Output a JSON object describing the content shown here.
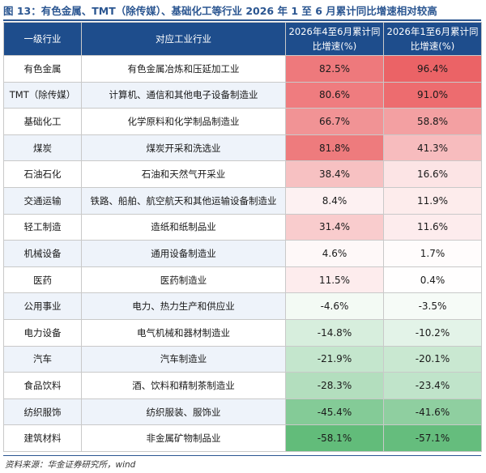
{
  "title": "图 13：有色金属、TMT（除传媒）、基础化工等行业 2026 年 1 至 6 月累计同比增速相对较高",
  "source": "资料来源：华金证券研究所，wind",
  "colors": {
    "header_bg": "#1e4d8c",
    "positive": "#e8474b",
    "negative": "#4fb46a"
  },
  "table": {
    "headers": [
      "一级行业",
      "对应工业行业",
      "2026年4至6月累计同比增速(%)",
      "2026年1至6月累计同比增速(%)"
    ],
    "rows": [
      [
        "有色金属",
        "有色金属冶炼和压延加工业",
        "82.5%",
        "96.4%"
      ],
      [
        "TMT（除传媒）",
        "计算机、通信和其他电子设备制造业",
        "80.6%",
        "91.0%"
      ],
      [
        "基础化工",
        "化学原料和化学制品制造业",
        "66.7%",
        "58.8%"
      ],
      [
        "煤炭",
        "煤炭开采和洗选业",
        "81.8%",
        "41.3%"
      ],
      [
        "石油石化",
        "石油和天然气开采业",
        "38.4%",
        "16.6%"
      ],
      [
        "交通运输",
        "铁路、船舶、航空航天和其他运输设备制造业",
        "8.4%",
        "11.9%"
      ],
      [
        "轻工制造",
        "造纸和纸制品业",
        "31.4%",
        "11.6%"
      ],
      [
        "机械设备",
        "通用设备制造业",
        "4.6%",
        "1.7%"
      ],
      [
        "医药",
        "医药制造业",
        "11.5%",
        "0.4%"
      ],
      [
        "公用事业",
        "电力、热力生产和供应业",
        "-4.6%",
        "-3.5%"
      ],
      [
        "电力设备",
        "电气机械和器材制造业",
        "-14.8%",
        "-10.2%"
      ],
      [
        "汽车",
        "汽车制造业",
        "-21.9%",
        "-20.1%"
      ],
      [
        "食品饮料",
        "酒、饮料和精制茶制造业",
        "-28.3%",
        "-23.4%"
      ],
      [
        "纺织服饰",
        "纺织服装、服饰业",
        "-45.4%",
        "-41.6%"
      ],
      [
        "建筑材料",
        "非金属矿物制品业",
        "-58.1%",
        "-57.1%"
      ]
    ]
  }
}
